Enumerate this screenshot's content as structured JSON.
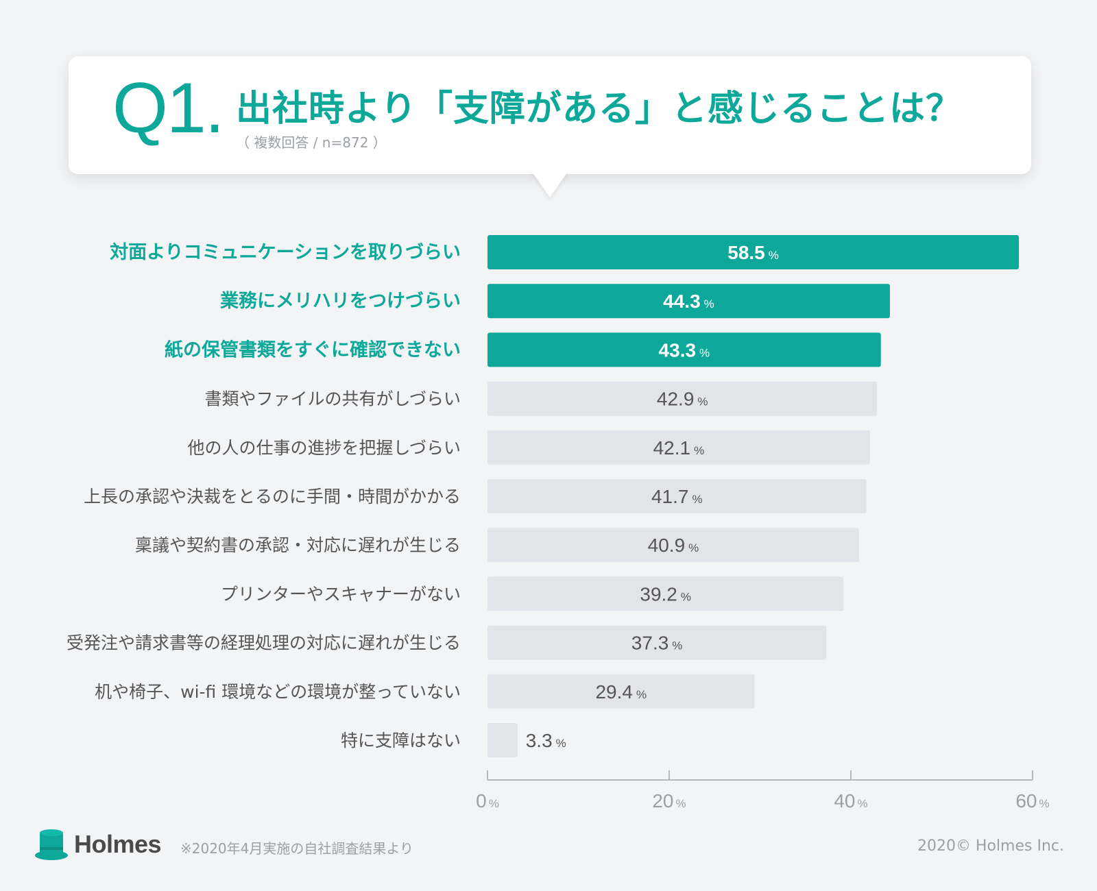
{
  "header": {
    "question_number": "Q1.",
    "title": "出社時より「支障がある」と感じることは？",
    "subtitle": "（ 複数回答 / n=872 ）"
  },
  "chart_data": {
    "type": "bar",
    "orientation": "horizontal",
    "categories": [
      "対面よりコミュニケーションを取りづらい",
      "業務にメリハリをつけづらい",
      "紙の保管書類をすぐに確認できない",
      "書類やファイルの共有がしづらい",
      "他の人の仕事の進捗を把握しづらい",
      "上長の承認や決裁をとるのに手間・時間がかかる",
      "稟議や契約書の承認・対応に遅れが生じる",
      "プリンターやスキャナーがない",
      "受発注や請求書等の経理処理の対応に遅れが生じる",
      "机や椅子、wi-fi 環境などの環境が整っていない",
      "特に支障はない"
    ],
    "values": [
      58.5,
      44.3,
      43.3,
      42.9,
      42.1,
      41.7,
      40.9,
      39.2,
      37.3,
      29.4,
      3.3
    ],
    "value_labels": [
      "58.5",
      "44.3",
      "43.3",
      "42.9",
      "42.1",
      "41.7",
      "40.9",
      "39.2",
      "37.3",
      "29.4",
      "3.3"
    ],
    "value_unit": "%",
    "highlighted_top_n": 3,
    "xlim": [
      0,
      60
    ],
    "xticks": [
      0,
      20,
      40,
      60
    ],
    "xtick_labels": [
      "0",
      "20",
      "40",
      "60"
    ],
    "tick_unit": "%",
    "grid": false,
    "colors": {
      "highlight_bar": "#0ea89a",
      "highlight_label": "#0ea89a",
      "normal_bar": "#e2e4e9",
      "normal_label": "#555555",
      "value_on_highlight": "#ffffff",
      "value_normal": "#555555",
      "axis": "#b5b9bf",
      "tick_label": "#9aa0a6"
    }
  },
  "footer": {
    "logo_text": "Holmes",
    "logo_icon": "top-hat-icon",
    "footnote": "※2020年4月実施の自社調査結果より",
    "copyright": "2020© Holmes Inc."
  }
}
